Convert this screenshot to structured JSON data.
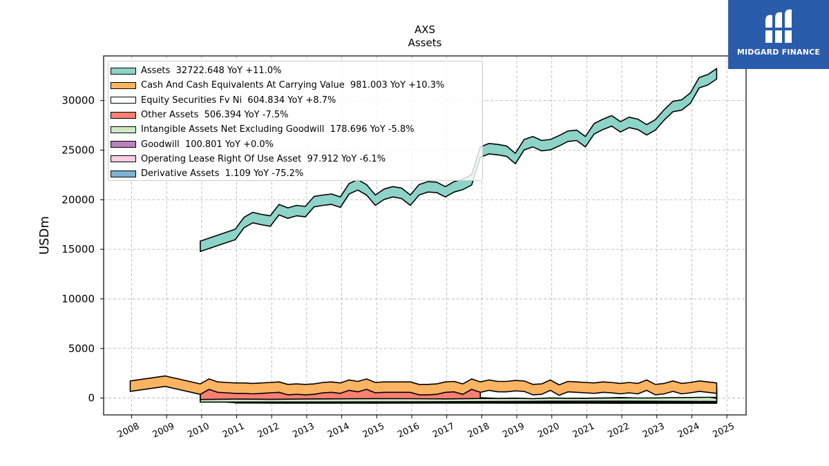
{
  "chart_data": {
    "type": "area",
    "title": "AXS",
    "subtitle": "Assets",
    "xlabel": "",
    "ylabel": "USDm",
    "xlim": [
      2007.2,
      2025.55
    ],
    "ylim": [
      -1700,
      34500
    ],
    "x_ticks": [
      "2008",
      "2009",
      "2010",
      "2011",
      "2012",
      "2013",
      "2014",
      "2015",
      "2016",
      "2017",
      "2018",
      "2019",
      "2020",
      "2021",
      "2022",
      "2023",
      "2024",
      "2025"
    ],
    "y_ticks": [
      0,
      5000,
      10000,
      15000,
      20000,
      25000,
      30000
    ],
    "y_tick_labels": [
      "0",
      "5000",
      "10000",
      "15000",
      "20000",
      "25000",
      "30000"
    ],
    "grid": true,
    "legend_position": "top-left",
    "series": [
      {
        "name": "Assets  32722.648 YoY +11.0%",
        "color": "#8dd3c7",
        "x": [
          2009.96,
          2010.96,
          2011.21,
          2011.46,
          2011.71,
          2011.96,
          2012.21,
          2012.46,
          2012.71,
          2012.96,
          2013.21,
          2013.46,
          2013.71,
          2013.96,
          2014.21,
          2014.46,
          2014.71,
          2014.96,
          2015.21,
          2015.46,
          2015.71,
          2015.96,
          2016.21,
          2016.46,
          2016.71,
          2016.96,
          2017.21,
          2017.46,
          2017.71,
          2017.96,
          2018.21,
          2018.46,
          2018.71,
          2018.96,
          2019.21,
          2019.46,
          2019.71,
          2019.96,
          2020.21,
          2020.46,
          2020.71,
          2020.96,
          2021.21,
          2021.46,
          2021.71,
          2021.96,
          2022.21,
          2022.46,
          2022.71,
          2022.96,
          2023.21,
          2023.46,
          2023.71,
          2023.96,
          2024.21,
          2024.46,
          2024.71
        ],
        "y": [
          15300,
          16500,
          17700,
          18200,
          18000,
          17850,
          19000,
          18650,
          18900,
          18800,
          19800,
          19950,
          20050,
          19750,
          21100,
          21500,
          21000,
          19950,
          20550,
          20800,
          20650,
          19950,
          21000,
          21300,
          21250,
          20800,
          21300,
          21550,
          22000,
          24800,
          25150,
          25050,
          24900,
          24150,
          25550,
          25850,
          25450,
          25550,
          25950,
          26400,
          26500,
          25850,
          27150,
          27600,
          27950,
          27350,
          27800,
          27600,
          27050,
          27550,
          28550,
          29400,
          29550,
          30250,
          31800,
          32100,
          32700
        ]
      },
      {
        "name": "Cash And Cash Equivalents At Carrying Value  981.003 YoY +10.3%",
        "color": "#fdb462",
        "x": [
          2007.96,
          2008.96,
          2009.96,
          2010.21,
          2010.46,
          2010.71,
          2010.96,
          2011.21,
          2011.46,
          2011.71,
          2011.96,
          2012.21,
          2012.46,
          2012.71,
          2012.96,
          2013.21,
          2013.46,
          2013.71,
          2013.96,
          2014.21,
          2014.46,
          2014.71,
          2014.96,
          2015.21,
          2015.46,
          2015.71,
          2015.96,
          2016.21,
          2016.46,
          2016.71,
          2016.96,
          2017.21,
          2017.46,
          2017.71,
          2017.96,
          2018.21,
          2018.46,
          2018.71,
          2018.96,
          2019.21,
          2019.46,
          2019.71,
          2019.96,
          2020.21,
          2020.46,
          2020.71,
          2020.96,
          2021.21,
          2021.46,
          2021.71,
          2021.96,
          2022.21,
          2022.46,
          2022.71,
          2022.96,
          2023.21,
          2023.46,
          2023.71,
          2023.96,
          2024.21,
          2024.46,
          2024.71
        ],
        "y": [
          1200,
          1700,
          900,
          1400,
          1100,
          1050,
          1000,
          1000,
          950,
          1000,
          1050,
          1100,
          850,
          900,
          850,
          900,
          1050,
          1100,
          1000,
          1300,
          1150,
          1400,
          1050,
          1100,
          1100,
          1100,
          1100,
          850,
          850,
          900,
          1100,
          1150,
          900,
          1400,
          1100,
          1300,
          1150,
          1150,
          1250,
          1200,
          850,
          900,
          1300,
          800,
          1150,
          1100,
          1050,
          1000,
          1100,
          1050,
          950,
          1050,
          950,
          1300,
          850,
          950,
          1200,
          950,
          1050,
          1200,
          1100,
          1000
        ]
      },
      {
        "name": "Equity Securities Fv Ni  604.834 YoY +8.7%",
        "color": "#ffffff",
        "x": [
          2017.96,
          2018.46,
          2018.96,
          2019.46,
          2019.96,
          2020.46,
          2020.96,
          2021.46,
          2021.96,
          2022.46,
          2022.96,
          2023.46,
          2023.96,
          2024.46,
          2024.71
        ],
        "y": [
          560,
          490,
          520,
          470,
          540,
          500,
          510,
          540,
          580,
          530,
          540,
          560,
          580,
          600,
          605
        ]
      },
      {
        "name": "Other Assets  506.394 YoY -7.5%",
        "color": "#fb8072",
        "x": [
          2009.96,
          2010.96,
          2011.96,
          2012.96,
          2013.96,
          2014.96,
          2015.96,
          2016.96,
          2017.96,
          2018.96,
          2019.96,
          2020.96,
          2021.96,
          2022.96,
          2023.46,
          2023.96,
          2024.21,
          2024.46,
          2024.71
        ],
        "y": [
          380,
          420,
          400,
          430,
          450,
          470,
          460,
          440,
          480,
          500,
          520,
          500,
          540,
          560,
          600,
          620,
          700,
          640,
          506
        ]
      },
      {
        "name": "Intangible Assets Net Excluding Goodwill  178.696 YoY -5.8%",
        "color": "#ccebc5",
        "x": [
          2009.96,
          2012.96,
          2015.96,
          2017.96,
          2019.96,
          2021.96,
          2023.96,
          2024.71
        ],
        "y": [
          120,
          130,
          140,
          170,
          200,
          210,
          190,
          179
        ]
      },
      {
        "name": "Goodwill  100.801 YoY +0.0%",
        "color": "#bc80bd",
        "x": [
          2009.96,
          2010.96,
          2024.71
        ],
        "y": [
          300,
          60,
          100.8
        ]
      },
      {
        "name": "Operating Lease Right Of Use Asset  97.912 YoY -6.1%",
        "color": "#fccde5",
        "x": [
          2018.96,
          2020.96,
          2022.96,
          2024.71
        ],
        "y": [
          120,
          110,
          104,
          97.9
        ]
      },
      {
        "name": "Derivative Assets  1.109 YoY -75.2%",
        "color": "#80b1d3",
        "x": [
          2010.96,
          2011.96,
          2014.96,
          2017.96,
          2020.96,
          2024.71
        ],
        "y": [
          30,
          15,
          8,
          20,
          6,
          1.1
        ]
      }
    ]
  },
  "logo": {
    "text": "MIDGARD FINANCE",
    "color": "#2b5bab"
  }
}
